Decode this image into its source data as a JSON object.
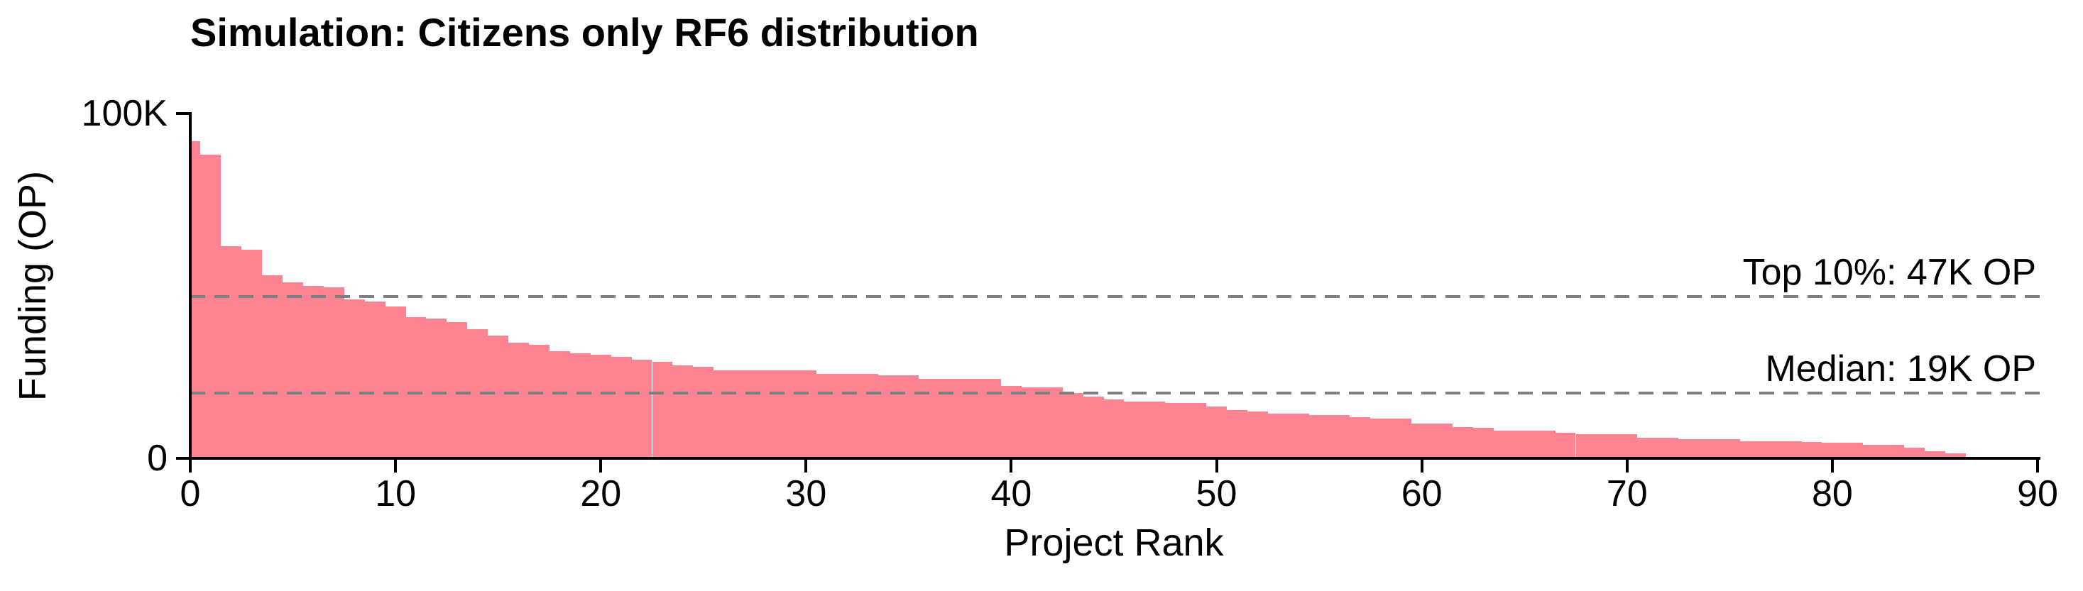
{
  "chart_data": {
    "type": "bar",
    "title": "Simulation: Citizens only RF6 distribution",
    "xlabel": "Project Rank",
    "ylabel": "Funding (OP)",
    "xlim": [
      0,
      90
    ],
    "ylim": [
      0,
      100000
    ],
    "xticks": [
      {
        "value": 0,
        "label": "0"
      },
      {
        "value": 10,
        "label": "10"
      },
      {
        "value": 20,
        "label": "20"
      },
      {
        "value": 30,
        "label": "30"
      },
      {
        "value": 40,
        "label": "40"
      },
      {
        "value": 50,
        "label": "50"
      },
      {
        "value": 60,
        "label": "60"
      },
      {
        "value": 70,
        "label": "70"
      },
      {
        "value": 80,
        "label": "80"
      },
      {
        "value": 90,
        "label": "90"
      }
    ],
    "yticks": [
      {
        "value": 0,
        "label": "0"
      },
      {
        "value": 100000,
        "label": "100K"
      }
    ],
    "bar_color": "#FC8392",
    "grid": false,
    "values_unit": "OP",
    "values": [
      92000,
      88000,
      61500,
      60500,
      53000,
      51000,
      50000,
      49500,
      46000,
      45500,
      44000,
      41000,
      40500,
      39500,
      37500,
      35500,
      33500,
      33000,
      31000,
      30500,
      30000,
      29500,
      28500,
      28000,
      27000,
      26500,
      25500,
      25500,
      25500,
      25500,
      25500,
      24500,
      24500,
      24500,
      24000,
      24000,
      23000,
      23000,
      23000,
      23000,
      21000,
      20500,
      20500,
      19000,
      18000,
      17000,
      16500,
      16500,
      16000,
      16000,
      15000,
      14000,
      13500,
      13000,
      13000,
      12500,
      12500,
      12000,
      11500,
      11500,
      10000,
      10000,
      9000,
      8800,
      8000,
      8000,
      8000,
      7500,
      7000,
      7000,
      7000,
      6000,
      6000,
      5500,
      5500,
      5500,
      5000,
      5000,
      5000,
      4800,
      4500,
      4500,
      4000,
      4000,
      3000,
      2000,
      1500
    ],
    "annotations": [
      {
        "label": "Top 10%: 47K OP",
        "value": 47000,
        "line_color": "#7f7f7f",
        "style": "dashed"
      },
      {
        "label": "Median: 19K OP",
        "value": 19000,
        "line_color": "#7f7f7f",
        "style": "dashed"
      }
    ]
  }
}
